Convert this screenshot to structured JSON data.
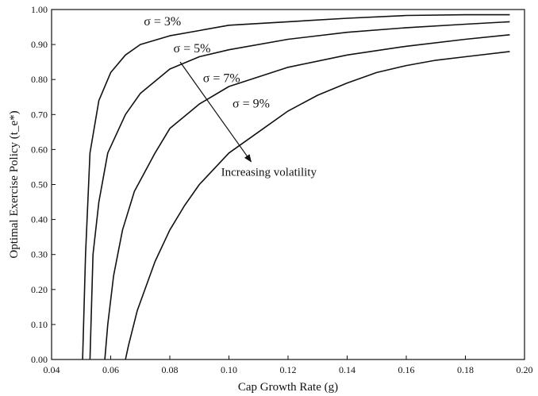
{
  "chart_data": {
    "type": "line",
    "xlabel": "Cap Growth Rate (g)",
    "ylabel": "Optimal Exercise Policy (t_e*)",
    "xlim": [
      0.04,
      0.2
    ],
    "ylim": [
      0.0,
      1.0
    ],
    "grid": false,
    "x_ticks": [
      "0.04",
      "0.06",
      "0.08",
      "0.10",
      "0.12",
      "0.14",
      "0.16",
      "0.18",
      "0.20"
    ],
    "y_ticks": [
      "0.00",
      "0.10",
      "0.20",
      "0.30",
      "0.40",
      "0.50",
      "0.60",
      "0.70",
      "0.80",
      "0.90",
      "1.00"
    ],
    "series": [
      {
        "name": "σ = 3%",
        "points": [
          [
            0.0505,
            0.0
          ],
          [
            0.0515,
            0.3
          ],
          [
            0.053,
            0.59
          ],
          [
            0.056,
            0.74
          ],
          [
            0.06,
            0.82
          ],
          [
            0.065,
            0.87
          ],
          [
            0.07,
            0.9
          ],
          [
            0.08,
            0.925
          ],
          [
            0.09,
            0.94
          ],
          [
            0.1,
            0.955
          ],
          [
            0.12,
            0.965
          ],
          [
            0.14,
            0.975
          ],
          [
            0.16,
            0.983
          ],
          [
            0.18,
            0.985
          ],
          [
            0.195,
            0.985
          ]
        ]
      },
      {
        "name": "σ = 5%",
        "points": [
          [
            0.053,
            0.0
          ],
          [
            0.054,
            0.3
          ],
          [
            0.056,
            0.45
          ],
          [
            0.059,
            0.59
          ],
          [
            0.065,
            0.7
          ],
          [
            0.07,
            0.76
          ],
          [
            0.08,
            0.83
          ],
          [
            0.09,
            0.865
          ],
          [
            0.1,
            0.885
          ],
          [
            0.12,
            0.915
          ],
          [
            0.14,
            0.935
          ],
          [
            0.16,
            0.948
          ],
          [
            0.18,
            0.958
          ],
          [
            0.195,
            0.965
          ]
        ]
      },
      {
        "name": "σ = 7%",
        "points": [
          [
            0.058,
            0.0
          ],
          [
            0.059,
            0.1
          ],
          [
            0.061,
            0.24
          ],
          [
            0.064,
            0.37
          ],
          [
            0.068,
            0.48
          ],
          [
            0.075,
            0.59
          ],
          [
            0.08,
            0.66
          ],
          [
            0.09,
            0.73
          ],
          [
            0.1,
            0.78
          ],
          [
            0.12,
            0.835
          ],
          [
            0.14,
            0.87
          ],
          [
            0.16,
            0.895
          ],
          [
            0.18,
            0.915
          ],
          [
            0.195,
            0.928
          ]
        ]
      },
      {
        "name": "σ = 9%",
        "points": [
          [
            0.065,
            0.0
          ],
          [
            0.066,
            0.04
          ],
          [
            0.069,
            0.14
          ],
          [
            0.075,
            0.28
          ],
          [
            0.08,
            0.37
          ],
          [
            0.085,
            0.44
          ],
          [
            0.09,
            0.5
          ],
          [
            0.1,
            0.59
          ],
          [
            0.11,
            0.65
          ],
          [
            0.12,
            0.71
          ],
          [
            0.13,
            0.755
          ],
          [
            0.14,
            0.79
          ],
          [
            0.15,
            0.82
          ],
          [
            0.16,
            0.84
          ],
          [
            0.17,
            0.855
          ],
          [
            0.18,
            0.865
          ],
          [
            0.195,
            0.88
          ]
        ]
      }
    ],
    "series_label_positions": [
      [
        0.0775,
        0.955
      ],
      [
        0.0875,
        0.878
      ],
      [
        0.0975,
        0.793
      ],
      [
        0.1075,
        0.72
      ]
    ],
    "annotation": {
      "text": "Increasing volatility",
      "arrow_from": [
        0.0835,
        0.85
      ],
      "arrow_to": [
        0.1075,
        0.565
      ],
      "text_anchor": [
        0.1135,
        0.525
      ]
    }
  }
}
